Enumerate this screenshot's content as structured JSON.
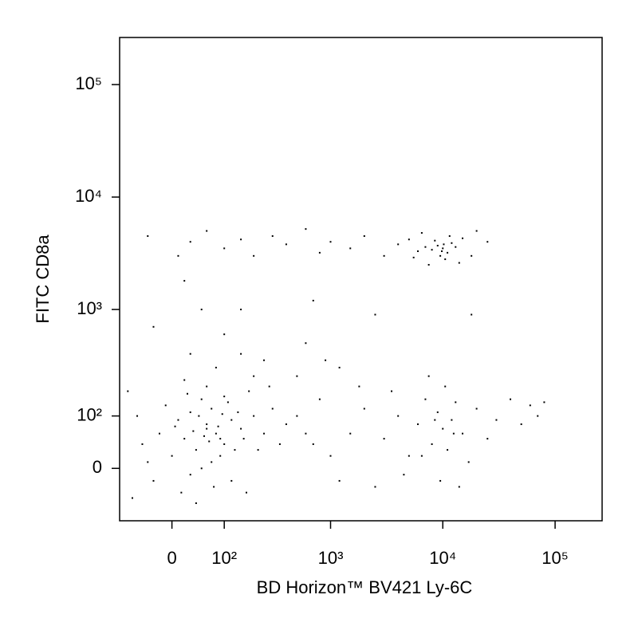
{
  "chart_data": {
    "type": "scatter",
    "xlabel": "BD Horizon™ BV421 Ly-6C",
    "ylabel": "FITC CD8a",
    "xscale": "biexponential",
    "yscale": "biexponential",
    "color": "#000000",
    "xlim": [
      -100,
      262144
    ],
    "ylim": [
      -100,
      262144
    ],
    "xticks": [
      0,
      {
        "value": 100,
        "label": "10²"
      },
      {
        "value": 1000,
        "label": "10³"
      },
      {
        "value": 10000,
        "label": "10⁴"
      },
      {
        "value": 100000,
        "label": "10⁵"
      }
    ],
    "yticks": [
      0,
      {
        "value": 100,
        "label": "10²"
      },
      {
        "value": 1000,
        "label": "10³"
      },
      {
        "value": 10000,
        "label": "10⁴"
      },
      {
        "value": 100000,
        "label": "10⁵"
      }
    ],
    "x": [
      20,
      60,
      40,
      80,
      100,
      10,
      -20,
      -50,
      30,
      70,
      120,
      150,
      50,
      90,
      200,
      250,
      -60,
      0,
      35,
      65,
      45,
      110,
      130,
      -30,
      15,
      75,
      180,
      300,
      400,
      60,
      25,
      -10,
      85,
      55,
      95,
      160,
      220,
      -40,
      5,
      140,
      70,
      30,
      50,
      100,
      280,
      350,
      500,
      600,
      -70,
      40,
      120,
      200,
      80,
      150,
      250,
      20,
      -80,
      170,
      90,
      60,
      -40,
      10,
      30,
      60,
      100,
      150,
      200,
      300,
      400,
      600,
      800,
      1000,
      1500,
      2000,
      3000,
      4000,
      5000,
      6000,
      7000,
      8000,
      9000,
      10000,
      11000,
      12000,
      9500,
      8500,
      10500,
      13000,
      15000,
      18000,
      20000,
      25000,
      7500,
      11500,
      9800,
      10200,
      14000,
      6500,
      5500,
      20,
      50,
      -30,
      150,
      700,
      2500,
      100,
      600,
      30,
      1200,
      18000,
      3000,
      4000,
      5000,
      6000,
      7000,
      8000,
      9000,
      10000,
      11000,
      12000,
      13000,
      15000,
      17000,
      20000,
      25000,
      30000,
      40000,
      50000,
      60000,
      70000,
      80000,
      9500,
      10500,
      7500,
      14000,
      3500,
      4500,
      6500,
      12500,
      8500,
      1500,
      2000,
      1000,
      800,
      1200,
      700,
      2500,
      500,
      900,
      1800
    ],
    "y": [
      50,
      80,
      30,
      60,
      40,
      90,
      60,
      40,
      -10,
      120,
      90,
      70,
      150,
      20,
      100,
      60,
      100,
      20,
      65,
      45,
      100,
      140,
      30,
      -20,
      -40,
      -30,
      180,
      120,
      80,
      200,
      170,
      130,
      75,
      55,
      105,
      50,
      30,
      10,
      75,
      110,
      10,
      110,
      0,
      160,
      200,
      40,
      100,
      60,
      -50,
      -60,
      -20,
      250,
      300,
      400,
      350,
      230,
      180,
      -40,
      50,
      70,
      4500,
      3000,
      4000,
      5000,
      3500,
      4200,
      3000,
      4500,
      3800,
      5200,
      3200,
      4000,
      3500,
      4500,
      3000,
      3800,
      4200,
      3300,
      3600,
      3400,
      3700,
      3500,
      3200,
      3900,
      3000,
      4100,
      2800,
      3600,
      4300,
      3000,
      5000,
      4000,
      2500,
      4500,
      3300,
      3800,
      2600,
      4800,
      2900,
      1800,
      1000,
      700,
      1000,
      1200,
      900,
      600,
      500,
      400,
      300,
      900,
      50,
      100,
      20,
      80,
      150,
      40,
      110,
      70,
      30,
      90,
      140,
      60,
      10,
      120,
      50,
      90,
      150,
      80,
      130,
      100,
      140,
      -20,
      200,
      250,
      -30,
      180,
      -10,
      20,
      60,
      90,
      60,
      120,
      20,
      150,
      -20,
      40,
      -30,
      250,
      350,
      200
    ]
  }
}
